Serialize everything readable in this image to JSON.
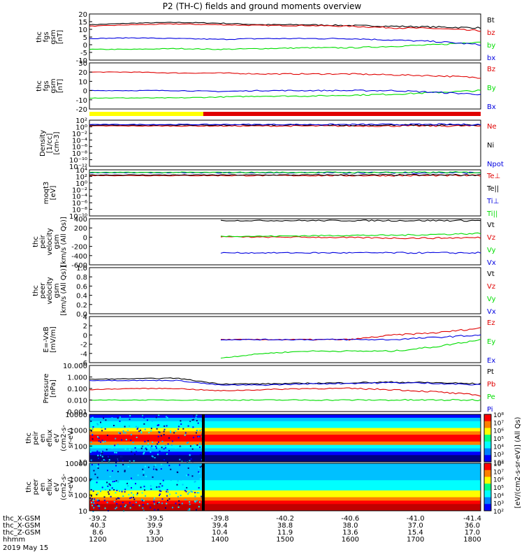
{
  "title": "P2 (TH-C) fields and ground moments overview",
  "footer": {
    "rows": [
      {
        "label": "thc_X-GSM",
        "values": [
          "-39.2",
          "-39.5",
          "-39.8",
          "-40.2",
          "-40.6",
          "-41.0",
          "-41.4"
        ]
      },
      {
        "label": "thc_X-GSM",
        "values": [
          "40.3",
          "39.9",
          "39.4",
          "38.8",
          "38.0",
          "37.0",
          "36.0"
        ]
      },
      {
        "label": "thc_Z-GSM",
        "values": [
          "8.6",
          "9.3",
          "10.4",
          "11.9",
          "13.6",
          "15.4",
          "17.0"
        ]
      },
      {
        "label": "hhmm",
        "values": [
          "1200",
          "1300",
          "1400",
          "1500",
          "1600",
          "1700",
          "1800"
        ]
      }
    ],
    "date": "2019 May 15"
  },
  "colorbar": {
    "label": "[eV/(cm2-s-sr-eV)] (All Qs)",
    "ticks_top": [
      "10⁸",
      "10⁷",
      "10⁶",
      "10⁵",
      "10⁴",
      "10³",
      "10²"
    ],
    "ticks_bottom": [
      "10⁸",
      "10⁷",
      "10⁶",
      "10⁵",
      "10⁴",
      "10³",
      "10²"
    ]
  },
  "colors": {
    "black": "#000000",
    "red": "#e00000",
    "green": "#00dd00",
    "blue": "#0000e0",
    "yellow": "#ffff00"
  },
  "chart_data": [
    {
      "type": "line",
      "ylabel": "thc\nfgs\ngsm\n[nT]",
      "ylim": [
        -10,
        20
      ],
      "yticks": [
        "20",
        "15",
        "10",
        "5",
        "0",
        "-5",
        "-10"
      ],
      "series": [
        {
          "name": "Bt",
          "color": "black",
          "values": [
            13,
            14,
            14.5,
            14,
            13,
            13,
            12.5,
            12,
            11.5,
            11
          ]
        },
        {
          "name": "bz",
          "color": "red",
          "values": [
            12,
            13,
            13.5,
            13,
            12.5,
            12.5,
            12,
            11,
            10.5,
            9
          ]
        },
        {
          "name": "by",
          "color": "green",
          "values": [
            -3,
            -3,
            -2.5,
            -3,
            -2.5,
            -2,
            -2,
            -1,
            0,
            2
          ]
        },
        {
          "name": "bx",
          "color": "blue",
          "values": [
            4,
            4.5,
            4,
            3.5,
            4,
            4,
            4,
            3,
            2,
            0
          ]
        }
      ]
    },
    {
      "type": "line",
      "ylabel": "thc\nfgs\ngsm\n[nT]",
      "ylim": [
        -20,
        30
      ],
      "yticks": [
        "30",
        "20",
        "10",
        "0",
        "-10",
        "-20"
      ],
      "series": [
        {
          "name": "Bz",
          "color": "red",
          "values": [
            20,
            20,
            19,
            19,
            18,
            18,
            18,
            17,
            16,
            14
          ]
        },
        {
          "name": "By",
          "color": "green",
          "values": [
            -8,
            -8,
            -8,
            -7,
            -6,
            -6,
            -5,
            -4,
            -2,
            0
          ]
        },
        {
          "name": "Bx",
          "color": "blue",
          "values": [
            0,
            0,
            0,
            -1,
            0,
            0,
            0,
            0,
            -2,
            -4
          ]
        }
      ]
    },
    {
      "type": "line",
      "ylabel": "Density\n[1/cc]\n[cm-3]",
      "ylim": [
        -14,
        2
      ],
      "log": true,
      "yticks": [
        "10²",
        "10⁰",
        "10⁻²",
        "10⁻⁴",
        "10⁻⁶",
        "10⁻⁸",
        "10⁻¹⁰",
        "10⁻¹²"
      ],
      "series": [
        {
          "name": "Ne",
          "color": "red",
          "values": [
            0,
            0,
            0,
            0,
            0,
            0,
            0,
            0,
            0,
            0
          ]
        },
        {
          "name": "Ni",
          "color": "black",
          "values": [
            0.3,
            0.3,
            0.3,
            0.3,
            0.3,
            0.3,
            0.3,
            0.3,
            0.3,
            0.3
          ]
        },
        {
          "name": "Npot",
          "color": "blue",
          "values": [
            0.5,
            0.5,
            0.5,
            0.5,
            0.5,
            0.5,
            0.5,
            0.5,
            0.5,
            0.5
          ]
        }
      ]
    },
    {
      "type": "line",
      "ylabel": "moqt3\n[eV]",
      "ylim": [
        -12,
        4
      ],
      "log": true,
      "yticks": [
        "10⁴",
        "10²",
        "10⁰",
        "10⁻²",
        "10⁻⁴",
        "10⁻⁶",
        "10⁻⁸",
        "10⁻¹⁰"
      ],
      "series": [
        {
          "name": "Te⊥",
          "color": "red",
          "values": [
            2,
            2,
            2,
            2,
            2,
            2,
            2,
            2,
            2,
            2
          ]
        },
        {
          "name": "Te||",
          "color": "black",
          "values": [
            2.2,
            2.2,
            2.2,
            2.2,
            2.2,
            2.2,
            2.2,
            2.2,
            2.2,
            2.2
          ]
        },
        {
          "name": "Ti⊥",
          "color": "blue",
          "values": [
            3,
            3,
            3,
            3,
            3,
            3,
            3,
            3,
            3,
            3
          ]
        },
        {
          "name": "Ti||",
          "color": "green",
          "values": [
            3.1,
            3.1,
            3.1,
            3.1,
            3.1,
            3.1,
            3.1,
            3.1,
            3.1,
            3.1
          ]
        }
      ]
    },
    {
      "type": "line",
      "ylabel": "thc\npeir\nvelocity\ngsm\n[km/s (All Qs)]",
      "ylim": [
        -600,
        400
      ],
      "yticks": [
        "400",
        "200",
        "0",
        "-200",
        "-400",
        "-600"
      ],
      "series": [
        {
          "name": "Vt",
          "color": "black",
          "values": [
            null,
            null,
            null,
            360,
            360,
            360,
            360,
            360,
            360,
            360
          ]
        },
        {
          "name": "Vz",
          "color": "red",
          "values": [
            null,
            null,
            null,
            10,
            0,
            0,
            -10,
            -20,
            -20,
            -10
          ]
        },
        {
          "name": "Vy",
          "color": "green",
          "values": [
            null,
            null,
            null,
            20,
            20,
            30,
            40,
            40,
            60,
            80
          ]
        },
        {
          "name": "Vx",
          "color": "blue",
          "values": [
            null,
            null,
            null,
            -340,
            -340,
            -340,
            -340,
            -340,
            -340,
            -340
          ]
        }
      ]
    },
    {
      "type": "line",
      "ylabel": "thc\npeer\nvelocity\ngsm\n[km/s (All Qs)]",
      "ylim": [
        0,
        1
      ],
      "yticks": [
        "1.0",
        "0.8",
        "0.6",
        "0.4",
        "0.2",
        "0.0"
      ],
      "series": [
        {
          "name": "Vt",
          "color": "black",
          "values": []
        },
        {
          "name": "Vz",
          "color": "red",
          "values": []
        },
        {
          "name": "Vy",
          "color": "green",
          "values": []
        },
        {
          "name": "Vx",
          "color": "blue",
          "values": []
        }
      ]
    },
    {
      "type": "line",
      "ylabel": "E=-VxB\n[mV/m]",
      "ylim": [
        -6,
        4
      ],
      "yticks": [
        "4",
        "2",
        "0",
        "-2",
        "-4",
        "-6"
      ],
      "series": [
        {
          "name": "Ez",
          "color": "red",
          "values": [
            null,
            null,
            null,
            -1,
            -1,
            -1,
            -1,
            0,
            0.5,
            1.5
          ]
        },
        {
          "name": "Ey",
          "color": "green",
          "values": [
            null,
            null,
            null,
            -5,
            -4,
            -3.5,
            -3.5,
            -3.5,
            -2.5,
            -1
          ]
        },
        {
          "name": "Ex",
          "color": "blue",
          "values": [
            null,
            null,
            null,
            -1,
            -1,
            -1,
            -1,
            -1,
            -0.5,
            0
          ]
        }
      ]
    },
    {
      "type": "line",
      "ylabel": "Pressure\n[nPa]",
      "ylim": [
        -3,
        1
      ],
      "log": true,
      "yticks": [
        "10.000",
        "1.000",
        "0.100",
        "0.010",
        "0.001"
      ],
      "series": [
        {
          "name": "Pt",
          "color": "black",
          "values": [
            -0.2,
            -0.15,
            -0.1,
            -0.6,
            -0.6,
            -0.55,
            -0.5,
            -0.45,
            -0.5,
            -0.6
          ]
        },
        {
          "name": "Pb",
          "color": "red",
          "values": [
            -1.1,
            -1.0,
            -1.0,
            -1.2,
            -1.1,
            -1.0,
            -1.0,
            -1.1,
            -1.3,
            -1.6
          ]
        },
        {
          "name": "Pe",
          "color": "green",
          "values": [
            -2.0,
            -2.0,
            -2.0,
            -2.0,
            -2.0,
            -2.0,
            -2.0,
            -2.0,
            -2.0,
            -2.0
          ]
        },
        {
          "name": "Pi",
          "color": "blue",
          "values": [
            -0.3,
            -0.3,
            -0.3,
            -0.7,
            -0.7,
            -0.6,
            -0.55,
            -0.5,
            -0.55,
            -0.7
          ]
        }
      ]
    },
    {
      "type": "heatmap",
      "ylabel": "thc\npeir\nen\neflux\neV\n(cm2-s-\nsr-eV)",
      "ylim": [
        5,
        20000
      ],
      "log": true,
      "yticks": [
        "10000",
        "1000",
        "100",
        "10"
      ]
    },
    {
      "type": "heatmap",
      "ylabel": "thc\npeer\nen\neflux\neV\n(cm2-s-\nsr-eV)",
      "ylim": [
        5,
        20000
      ],
      "log": true,
      "yticks": [
        "10000",
        "1000",
        "100",
        "10"
      ]
    }
  ]
}
